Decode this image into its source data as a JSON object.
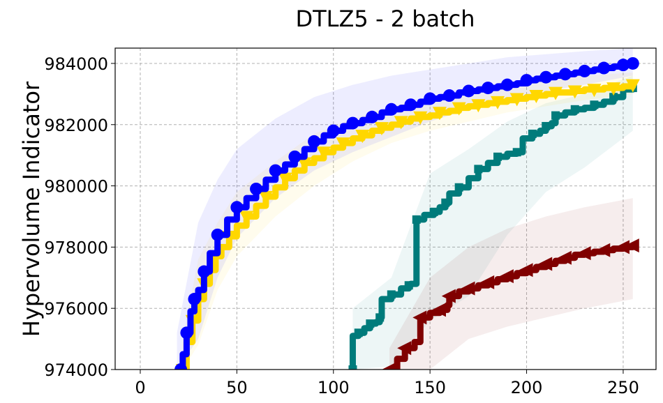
{
  "chart_data": {
    "type": "line",
    "title": "DTLZ5 - 2 batch",
    "xlabel": "",
    "ylabel": "Hypervolume Indicator",
    "xlim": [
      -13,
      267
    ],
    "ylim": [
      974000,
      984500
    ],
    "xticks": [
      0,
      50,
      100,
      150,
      200,
      250
    ],
    "yticks": [
      974000,
      976000,
      978000,
      980000,
      982000,
      984000
    ],
    "xtick_labels": [
      "0",
      "50",
      "100",
      "150",
      "200",
      "250"
    ],
    "ytick_labels": [
      "974000",
      "976000",
      "978000",
      "980000",
      "982000",
      "984000"
    ],
    "grid": true,
    "series": [
      {
        "name": "teal",
        "color": "#007b7b",
        "marker": "square",
        "points": [
          [
            110,
            974000
          ],
          [
            110,
            975100
          ],
          [
            113,
            975200
          ],
          [
            116,
            975350
          ],
          [
            119,
            975500
          ],
          [
            122,
            975550
          ],
          [
            124,
            975700
          ],
          [
            125,
            976300
          ],
          [
            130,
            976450
          ],
          [
            135,
            976650
          ],
          [
            139,
            976750
          ],
          [
            140,
            976800
          ],
          [
            143,
            978900
          ],
          [
            147,
            979050
          ],
          [
            152,
            979150
          ],
          [
            155,
            979300
          ],
          [
            158,
            979450
          ],
          [
            160,
            979750
          ],
          [
            165,
            979950
          ],
          [
            170,
            980250
          ],
          [
            175,
            980550
          ],
          [
            180,
            980750
          ],
          [
            185,
            980950
          ],
          [
            190,
            981050
          ],
          [
            195,
            981100
          ],
          [
            198,
            981550
          ],
          [
            203,
            981700
          ],
          [
            207,
            981800
          ],
          [
            210,
            981950
          ],
          [
            213,
            982050
          ],
          [
            215,
            982300
          ],
          [
            220,
            982400
          ],
          [
            225,
            982500
          ],
          [
            230,
            982550
          ],
          [
            235,
            982650
          ],
          [
            240,
            982750
          ],
          [
            245,
            982900
          ],
          [
            250,
            983150
          ],
          [
            255,
            983200
          ]
        ],
        "band_low": [
          [
            110,
            974000
          ],
          [
            130,
            974100
          ],
          [
            150,
            975600
          ],
          [
            170,
            976400
          ],
          [
            190,
            978400
          ],
          [
            210,
            979800
          ],
          [
            230,
            980600
          ],
          [
            255,
            981800
          ]
        ],
        "band_high": [
          [
            110,
            976000
          ],
          [
            130,
            977000
          ],
          [
            150,
            980400
          ],
          [
            170,
            981200
          ],
          [
            190,
            982100
          ],
          [
            210,
            982700
          ],
          [
            230,
            983000
          ],
          [
            255,
            983600
          ]
        ]
      },
      {
        "name": "dark-red",
        "color": "#800000",
        "marker": "triangle-left",
        "points": [
          [
            129,
            974000
          ],
          [
            133,
            974350
          ],
          [
            137,
            974700
          ],
          [
            142,
            974900
          ],
          [
            145,
            975700
          ],
          [
            150,
            975850
          ],
          [
            155,
            975950
          ],
          [
            159,
            976100
          ],
          [
            160,
            976400
          ],
          [
            165,
            976550
          ],
          [
            170,
            976650
          ],
          [
            175,
            976750
          ],
          [
            180,
            976850
          ],
          [
            185,
            976950
          ],
          [
            190,
            977050
          ],
          [
            195,
            977150
          ],
          [
            200,
            977250
          ],
          [
            205,
            977350
          ],
          [
            210,
            977450
          ],
          [
            215,
            977550
          ],
          [
            220,
            977650
          ],
          [
            225,
            977750
          ],
          [
            230,
            977800
          ],
          [
            235,
            977850
          ],
          [
            240,
            977900
          ],
          [
            245,
            977950
          ],
          [
            250,
            978000
          ],
          [
            255,
            978050
          ]
        ],
        "band_low": [
          [
            129,
            974000
          ],
          [
            150,
            974000
          ],
          [
            170,
            975000
          ],
          [
            190,
            975400
          ],
          [
            210,
            975700
          ],
          [
            230,
            976000
          ],
          [
            255,
            976300
          ]
        ],
        "band_high": [
          [
            129,
            974700
          ],
          [
            150,
            977000
          ],
          [
            170,
            978000
          ],
          [
            190,
            978600
          ],
          [
            210,
            979000
          ],
          [
            230,
            979300
          ],
          [
            255,
            979600
          ]
        ]
      },
      {
        "name": "gold",
        "color": "#ffd700",
        "marker": "triangle-down",
        "points": [
          [
            22,
            974000
          ],
          [
            24,
            974900
          ],
          [
            27,
            975600
          ],
          [
            30,
            976300
          ],
          [
            33,
            976800
          ],
          [
            36,
            977250
          ],
          [
            39,
            977700
          ],
          [
            42,
            978000
          ],
          [
            46,
            978350
          ],
          [
            50,
            978700
          ],
          [
            55,
            979000
          ],
          [
            60,
            979350
          ],
          [
            65,
            979650
          ],
          [
            70,
            979950
          ],
          [
            75,
            980250
          ],
          [
            80,
            980500
          ],
          [
            85,
            980750
          ],
          [
            90,
            980900
          ],
          [
            95,
            981100
          ],
          [
            100,
            981250
          ],
          [
            105,
            981400
          ],
          [
            110,
            981550
          ],
          [
            115,
            981650
          ],
          [
            120,
            981800
          ],
          [
            125,
            981900
          ],
          [
            130,
            982000
          ],
          [
            135,
            982100
          ],
          [
            140,
            982200
          ],
          [
            145,
            982250
          ],
          [
            150,
            982300
          ],
          [
            155,
            982400
          ],
          [
            160,
            982450
          ],
          [
            165,
            982550
          ],
          [
            170,
            982600
          ],
          [
            175,
            982650
          ],
          [
            180,
            982700
          ],
          [
            185,
            982750
          ],
          [
            190,
            982800
          ],
          [
            195,
            982850
          ],
          [
            200,
            982900
          ],
          [
            205,
            982950
          ],
          [
            210,
            983000
          ],
          [
            215,
            983050
          ],
          [
            220,
            983050
          ],
          [
            225,
            983100
          ],
          [
            230,
            983150
          ],
          [
            235,
            983150
          ],
          [
            240,
            983200
          ],
          [
            245,
            983200
          ],
          [
            250,
            983250
          ],
          [
            255,
            983300
          ]
        ],
        "band_low": [
          [
            22,
            974000
          ],
          [
            30,
            974800
          ],
          [
            40,
            976600
          ],
          [
            50,
            977700
          ],
          [
            70,
            979000
          ],
          [
            90,
            980000
          ],
          [
            110,
            980800
          ],
          [
            130,
            981400
          ],
          [
            150,
            981800
          ],
          [
            170,
            982100
          ],
          [
            190,
            982400
          ],
          [
            210,
            982600
          ],
          [
            230,
            982800
          ],
          [
            255,
            983000
          ]
        ],
        "band_high": [
          [
            22,
            975000
          ],
          [
            30,
            977600
          ],
          [
            40,
            978800
          ],
          [
            50,
            979800
          ],
          [
            70,
            980800
          ],
          [
            90,
            981700
          ],
          [
            110,
            982200
          ],
          [
            130,
            982600
          ],
          [
            150,
            982900
          ],
          [
            170,
            983100
          ],
          [
            190,
            983300
          ],
          [
            210,
            983500
          ],
          [
            230,
            983600
          ],
          [
            255,
            983700
          ]
        ]
      },
      {
        "name": "blue",
        "color": "#0000ff",
        "marker": "circle",
        "points": [
          [
            21,
            974000
          ],
          [
            22,
            974500
          ],
          [
            24,
            975200
          ],
          [
            26,
            975900
          ],
          [
            28,
            976300
          ],
          [
            30,
            976600
          ],
          [
            33,
            977200
          ],
          [
            36,
            977800
          ],
          [
            40,
            978400
          ],
          [
            45,
            978900
          ],
          [
            50,
            979300
          ],
          [
            55,
            979600
          ],
          [
            60,
            979900
          ],
          [
            65,
            980200
          ],
          [
            70,
            980500
          ],
          [
            75,
            980700
          ],
          [
            80,
            980950
          ],
          [
            85,
            981200
          ],
          [
            90,
            981450
          ],
          [
            95,
            981650
          ],
          [
            100,
            981800
          ],
          [
            105,
            981950
          ],
          [
            110,
            982050
          ],
          [
            115,
            982150
          ],
          [
            120,
            982250
          ],
          [
            125,
            982400
          ],
          [
            130,
            982500
          ],
          [
            135,
            982550
          ],
          [
            140,
            982650
          ],
          [
            145,
            982750
          ],
          [
            150,
            982850
          ],
          [
            155,
            982900
          ],
          [
            160,
            982950
          ],
          [
            165,
            983050
          ],
          [
            170,
            983100
          ],
          [
            175,
            983150
          ],
          [
            180,
            983200
          ],
          [
            185,
            983250
          ],
          [
            190,
            983300
          ],
          [
            195,
            983350
          ],
          [
            200,
            983450
          ],
          [
            205,
            983500
          ],
          [
            210,
            983550
          ],
          [
            215,
            983600
          ],
          [
            220,
            983650
          ],
          [
            225,
            983700
          ],
          [
            230,
            983750
          ],
          [
            235,
            983800
          ],
          [
            240,
            983850
          ],
          [
            245,
            983900
          ],
          [
            250,
            983950
          ],
          [
            255,
            984000
          ]
        ],
        "band_low": [
          [
            19,
            974000
          ],
          [
            30,
            975000
          ],
          [
            40,
            977000
          ],
          [
            50,
            978300
          ],
          [
            70,
            979600
          ],
          [
            90,
            980500
          ],
          [
            110,
            981100
          ],
          [
            130,
            981600
          ],
          [
            150,
            982100
          ],
          [
            170,
            982500
          ],
          [
            190,
            982800
          ],
          [
            210,
            983100
          ],
          [
            230,
            983300
          ],
          [
            255,
            983600
          ]
        ],
        "band_high": [
          [
            19,
            975200
          ],
          [
            30,
            978800
          ],
          [
            40,
            980200
          ],
          [
            50,
            981200
          ],
          [
            70,
            982200
          ],
          [
            90,
            982900
          ],
          [
            110,
            983300
          ],
          [
            130,
            983600
          ],
          [
            150,
            983800
          ],
          [
            170,
            984000
          ],
          [
            190,
            984200
          ],
          [
            210,
            984300
          ],
          [
            230,
            984400
          ],
          [
            255,
            984500
          ]
        ]
      }
    ]
  }
}
